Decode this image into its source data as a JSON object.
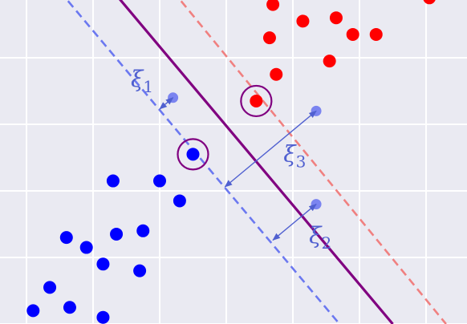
{
  "chart_data": {
    "type": "scatter",
    "title": "",
    "xlabel": "",
    "ylabel": "",
    "xlim": [
      0.0,
      7.1
    ],
    "ylim": [
      0.0,
      4.9
    ],
    "grid": true,
    "background_color": "#eaeaf2",
    "grid_color": "#ffffff",
    "series": [
      {
        "class": "positive",
        "color": "#ff0000",
        "points": [
          [
            3.7,
            4.8
          ],
          [
            6.05,
            4.9
          ],
          [
            4.15,
            4.55
          ],
          [
            4.65,
            4.6
          ],
          [
            4.9,
            4.35
          ],
          [
            5.25,
            4.35
          ],
          [
            3.65,
            4.3
          ],
          [
            4.55,
            3.95
          ],
          [
            3.75,
            3.75
          ],
          [
            3.45,
            3.35
          ]
        ]
      },
      {
        "class": "negative",
        "color": "#0000ff",
        "points": [
          [
            2.5,
            2.55
          ],
          [
            1.3,
            2.15
          ],
          [
            2.0,
            2.15
          ],
          [
            2.3,
            1.85
          ],
          [
            1.75,
            1.4
          ],
          [
            1.35,
            1.35
          ],
          [
            0.6,
            1.3
          ],
          [
            0.9,
            1.15
          ],
          [
            1.15,
            0.9
          ],
          [
            1.7,
            0.8
          ],
          [
            0.35,
            0.55
          ],
          [
            0.1,
            0.2
          ],
          [
            0.65,
            0.25
          ],
          [
            1.15,
            0.1
          ]
        ]
      },
      {
        "class": "slack",
        "color": "#7b84f0",
        "points": [
          [
            2.2,
            3.4
          ],
          [
            4.35,
            3.2
          ],
          [
            4.35,
            1.8
          ]
        ]
      }
    ],
    "support_vectors": [
      [
        3.45,
        3.35
      ],
      [
        2.5,
        2.55
      ]
    ],
    "support_vector_ring_color": "#800080",
    "lines": [
      {
        "kind": "decision-boundary",
        "color": "#800080",
        "style": "solid",
        "from": [
          1.3,
          5.0
        ],
        "to": [
          5.5,
          0.0
        ]
      },
      {
        "kind": "positive-margin",
        "color": "#f08080",
        "style": "dashed",
        "from": [
          2.2,
          5.0
        ],
        "to": [
          6.3,
          0.0
        ]
      },
      {
        "kind": "negative-margin",
        "color": "#6b78f0",
        "style": "dashed",
        "from": [
          0.5,
          5.0
        ],
        "to": [
          4.7,
          0.0
        ]
      }
    ],
    "slack_arrows": [
      {
        "label": "ξ1",
        "from": [
          2.2,
          3.4
        ],
        "to": [
          2.0,
          3.23
        ]
      },
      {
        "label": "ξ3",
        "from": [
          4.35,
          3.2
        ],
        "to": [
          2.98,
          2.06
        ]
      },
      {
        "label": "ξ2",
        "from": [
          4.35,
          1.8
        ],
        "to": [
          3.7,
          1.26
        ]
      }
    ],
    "annotation_color": "#5060d0"
  }
}
